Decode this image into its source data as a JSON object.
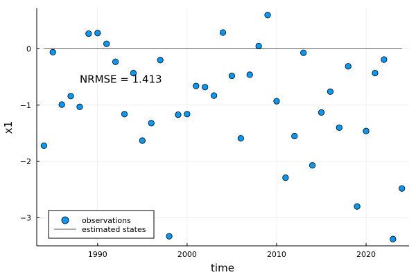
{
  "chart_data": {
    "type": "scatter",
    "title": "",
    "xlabel": "time",
    "ylabel": "x1",
    "xlim": [
      1983.2,
      2024.8
    ],
    "ylim": [
      -3.5,
      0.72
    ],
    "xticks": [
      1990,
      2000,
      2010,
      2020
    ],
    "yticks": [
      0,
      -1,
      -2,
      -3
    ],
    "xtick_labels": [
      "1990",
      "2000",
      "2010",
      "2020"
    ],
    "ytick_labels": [
      "0",
      "−1",
      "−2",
      "−3"
    ],
    "grid": true,
    "legend_position": "bottom-left",
    "annotation": {
      "text": "NRMSE = 1.413",
      "x": 1988,
      "y": -0.6
    },
    "series": [
      {
        "name": "observations",
        "kind": "scatter",
        "color": "#009AFA",
        "x": [
          1984,
          1985,
          1986,
          1987,
          1988,
          1989,
          1990,
          1991,
          1992,
          1993,
          1994,
          1995,
          1996,
          1997,
          1998,
          1999,
          2000,
          2001,
          2002,
          2003,
          2004,
          2005,
          2006,
          2007,
          2008,
          2009,
          2010,
          2011,
          2012,
          2013,
          2014,
          2015,
          2016,
          2017,
          2018,
          2019,
          2020,
          2021,
          2022,
          2023,
          2024
        ],
        "y": [
          -1.72,
          -0.06,
          -0.99,
          -0.84,
          -1.03,
          0.27,
          0.28,
          0.09,
          -0.23,
          -1.16,
          -0.43,
          -1.63,
          -1.32,
          -0.2,
          -3.33,
          -1.17,
          -1.16,
          -0.66,
          -0.68,
          -0.83,
          0.29,
          -0.48,
          -1.59,
          -0.46,
          0.05,
          0.6,
          -0.93,
          -2.29,
          -1.55,
          -0.07,
          -2.07,
          -1.13,
          -0.76,
          -1.4,
          -0.31,
          -2.8,
          -1.46,
          -0.43,
          -0.19,
          -3.38,
          -2.48
        ]
      },
      {
        "name": "estimated states",
        "kind": "line",
        "color": "#555555",
        "x": [
          1984,
          2024
        ],
        "y": [
          0,
          0
        ]
      }
    ]
  }
}
